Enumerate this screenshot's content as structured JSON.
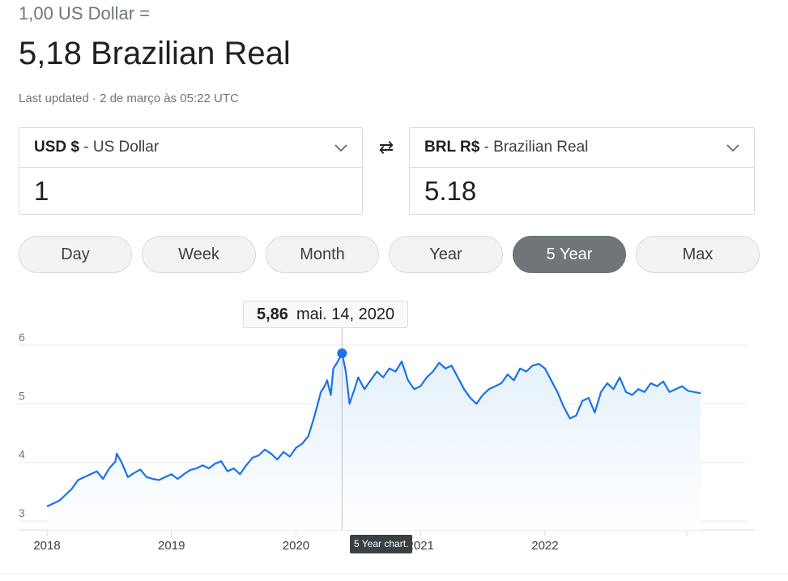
{
  "header": {
    "unit_line": "1,00 US Dollar =",
    "result_line": "5,18 Brazilian Real",
    "updated": "Last updated · 2 de março às 05:22 UTC"
  },
  "from": {
    "code": "USD $",
    "name": " - US Dollar",
    "value": "1"
  },
  "to": {
    "code": "BRL R$",
    "name": " - Brazilian Real",
    "value": "5.18"
  },
  "swap_icon": "⇄",
  "range_tabs": [
    "Day",
    "Week",
    "Month",
    "Year",
    "5 Year",
    "Max"
  ],
  "active_tab": "5 Year",
  "tooltip": {
    "value": "5,86",
    "date": "mai. 14, 2020"
  },
  "chart_caption": "5 Year chart.",
  "colors": {
    "line": "#1a73e8",
    "area_top": "#e3f0fb",
    "active_tab": "#70757a"
  },
  "chart_data": {
    "type": "area",
    "title": "",
    "xlabel": "",
    "ylabel": "",
    "y_ticks": [
      "3",
      "4",
      "5",
      "6"
    ],
    "x_ticks": [
      "2018",
      "2019",
      "2020",
      "2021",
      "2022"
    ],
    "ylim": [
      2.85,
      6.15
    ],
    "xlim": [
      2018.0,
      2023.62
    ],
    "grid": true,
    "series": [
      {
        "values": [
          [
            2018.0,
            3.25
          ],
          [
            2018.05,
            3.3
          ],
          [
            2018.1,
            3.35
          ],
          [
            2018.15,
            3.45
          ],
          [
            2018.2,
            3.55
          ],
          [
            2018.25,
            3.7
          ],
          [
            2018.3,
            3.75
          ],
          [
            2018.35,
            3.8
          ],
          [
            2018.4,
            3.85
          ],
          [
            2018.45,
            3.72
          ],
          [
            2018.5,
            3.9
          ],
          [
            2018.55,
            4.02
          ],
          [
            2018.56,
            4.15
          ],
          [
            2018.6,
            4.0
          ],
          [
            2018.65,
            3.75
          ],
          [
            2018.7,
            3.82
          ],
          [
            2018.75,
            3.88
          ],
          [
            2018.8,
            3.75
          ],
          [
            2018.85,
            3.72
          ],
          [
            2018.9,
            3.7
          ],
          [
            2018.95,
            3.75
          ],
          [
            2019.0,
            3.8
          ],
          [
            2019.05,
            3.72
          ],
          [
            2019.1,
            3.8
          ],
          [
            2019.15,
            3.87
          ],
          [
            2019.2,
            3.9
          ],
          [
            2019.25,
            3.95
          ],
          [
            2019.3,
            3.9
          ],
          [
            2019.35,
            3.98
          ],
          [
            2019.4,
            4.02
          ],
          [
            2019.45,
            3.85
          ],
          [
            2019.5,
            3.9
          ],
          [
            2019.55,
            3.8
          ],
          [
            2019.6,
            3.95
          ],
          [
            2019.65,
            4.08
          ],
          [
            2019.7,
            4.12
          ],
          [
            2019.75,
            4.22
          ],
          [
            2019.8,
            4.15
          ],
          [
            2019.85,
            4.05
          ],
          [
            2019.9,
            4.18
          ],
          [
            2019.95,
            4.1
          ],
          [
            2020.0,
            4.25
          ],
          [
            2020.05,
            4.32
          ],
          [
            2020.1,
            4.45
          ],
          [
            2020.15,
            4.8
          ],
          [
            2020.2,
            5.2
          ],
          [
            2020.23,
            5.3
          ],
          [
            2020.25,
            5.4
          ],
          [
            2020.28,
            5.15
          ],
          [
            2020.3,
            5.6
          ],
          [
            2020.33,
            5.7
          ],
          [
            2020.37,
            5.86
          ],
          [
            2020.4,
            5.55
          ],
          [
            2020.43,
            5.0
          ],
          [
            2020.47,
            5.25
          ],
          [
            2020.5,
            5.45
          ],
          [
            2020.55,
            5.25
          ],
          [
            2020.6,
            5.4
          ],
          [
            2020.65,
            5.55
          ],
          [
            2020.7,
            5.45
          ],
          [
            2020.75,
            5.6
          ],
          [
            2020.8,
            5.55
          ],
          [
            2020.85,
            5.72
          ],
          [
            2020.9,
            5.4
          ],
          [
            2020.95,
            5.25
          ],
          [
            2021.0,
            5.3
          ],
          [
            2021.05,
            5.45
          ],
          [
            2021.1,
            5.55
          ],
          [
            2021.15,
            5.7
          ],
          [
            2021.2,
            5.6
          ],
          [
            2021.25,
            5.65
          ],
          [
            2021.3,
            5.45
          ],
          [
            2021.35,
            5.25
          ],
          [
            2021.4,
            5.1
          ],
          [
            2021.45,
            5.0
          ],
          [
            2021.5,
            5.15
          ],
          [
            2021.55,
            5.25
          ],
          [
            2021.6,
            5.3
          ],
          [
            2021.65,
            5.35
          ],
          [
            2021.7,
            5.5
          ],
          [
            2021.75,
            5.4
          ],
          [
            2021.8,
            5.6
          ],
          [
            2021.85,
            5.55
          ],
          [
            2021.9,
            5.65
          ],
          [
            2021.95,
            5.68
          ],
          [
            2022.0,
            5.6
          ],
          [
            2022.05,
            5.4
          ],
          [
            2022.1,
            5.2
          ],
          [
            2022.15,
            4.95
          ],
          [
            2022.2,
            4.75
          ],
          [
            2022.25,
            4.8
          ],
          [
            2022.3,
            5.05
          ],
          [
            2022.35,
            5.1
          ],
          [
            2022.4,
            4.85
          ],
          [
            2022.45,
            5.2
          ],
          [
            2022.5,
            5.35
          ],
          [
            2022.55,
            5.25
          ],
          [
            2022.6,
            5.45
          ],
          [
            2022.65,
            5.2
          ],
          [
            2022.7,
            5.15
          ],
          [
            2022.75,
            5.25
          ],
          [
            2022.8,
            5.2
          ],
          [
            2022.85,
            5.35
          ],
          [
            2022.9,
            5.3
          ],
          [
            2022.95,
            5.38
          ],
          [
            2023.0,
            5.2
          ],
          [
            2023.05,
            5.25
          ],
          [
            2023.1,
            5.3
          ],
          [
            2023.15,
            5.22
          ],
          [
            2023.2,
            5.2
          ],
          [
            2023.25,
            5.18
          ]
        ]
      }
    ],
    "highlight": {
      "x": 2020.37,
      "y": 5.86
    }
  }
}
